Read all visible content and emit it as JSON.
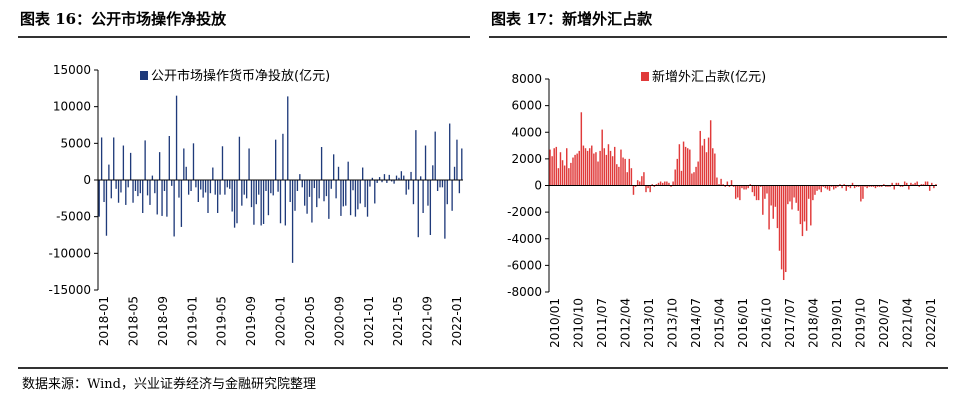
{
  "header": {
    "left_title": "图表 16：公开市场操作净投放",
    "right_title": "图表 17：新增外汇占款"
  },
  "footer": {
    "source": "数据来源：Wind，兴业证券经济与金融研究院整理"
  },
  "chart_data": [
    {
      "type": "bar",
      "legend": "公开市场操作货币净投放(亿元)",
      "color": "#1f3a7a",
      "ylim": [
        -15000,
        15000
      ],
      "yticks": [
        -15000,
        -10000,
        -5000,
        0,
        5000,
        10000,
        15000
      ],
      "xtick_labels": [
        "2018-01",
        "2018-05",
        "2018-09",
        "2019-01",
        "2019-05",
        "2019-09",
        "2020-01",
        "2020-05",
        "2020-09",
        "2021-01",
        "2021-05",
        "2021-09",
        "2022-01"
      ],
      "values": [
        -5000,
        5800,
        -3000,
        -7600,
        2100,
        -2500,
        5800,
        -1200,
        -3100,
        -1700,
        4700,
        -3400,
        -1000,
        3700,
        -3100,
        -1500,
        -2200,
        -1800,
        -4500,
        5400,
        -2100,
        -3400,
        600,
        -1800,
        -4700,
        3800,
        -4900,
        -1500,
        -5000,
        6000,
        -800,
        -7700,
        11500,
        -2400,
        -6400,
        4300,
        1800,
        -2000,
        -1500,
        5000,
        -1000,
        -3000,
        -1300,
        -2400,
        -1700,
        -4500,
        -1800,
        1700,
        -2000,
        -4500,
        -2000,
        4600,
        -2000,
        -1000,
        -1200,
        -4300,
        -6500,
        -5900,
        5900,
        -3500,
        -2000,
        -2500,
        4300,
        -3700,
        -6100,
        -3300,
        -2000,
        -6200,
        -6000,
        -1500,
        -4800,
        -1800,
        -2100,
        5500,
        -1600,
        -5900,
        6300,
        -6200,
        11400,
        -3000,
        -11300,
        -4200,
        -1500,
        800,
        -1000,
        -3500,
        -4600,
        -2300,
        -5800,
        -1100,
        -3700,
        -2500,
        4500,
        -2900,
        -2200,
        -5300,
        -1200,
        3500,
        -2500,
        1800,
        -4900,
        -3600,
        -3500,
        2500,
        -4800,
        -1400,
        -5000,
        -4000,
        -3200,
        1700,
        -3700,
        -5000,
        -900,
        300,
        -3200,
        -400,
        400,
        -300,
        800,
        -400,
        700,
        -200,
        -500,
        600,
        300,
        1200,
        600,
        -2000,
        -1300,
        1100,
        -3300,
        6800,
        -7800,
        500,
        -4500,
        4700,
        -3500,
        -7500,
        2000,
        6600,
        -1500,
        -1000,
        -1000,
        -8000,
        -3300,
        7700,
        -4200,
        1800,
        5500,
        -1800,
        4300
      ]
    },
    {
      "type": "bar",
      "legend": "新增外汇占款(亿元)",
      "color": "#e03a3a",
      "ylim": [
        -8000,
        8000
      ],
      "yticks": [
        -8000,
        -6000,
        -4000,
        -2000,
        0,
        2000,
        4000,
        6000,
        8000
      ],
      "xtick_labels": [
        "2010/01",
        "2010/10",
        "2011/07",
        "2012/04",
        "2013/01",
        "2013/10",
        "2014/07",
        "2015/04",
        "2016/01",
        "2016/10",
        "2017/07",
        "2018/04",
        "2019/01",
        "2019/10",
        "2020/07",
        "2021/04",
        "2022/01"
      ],
      "values": [
        2700,
        2200,
        2800,
        2900,
        1300,
        2500,
        1900,
        1500,
        2800,
        1300,
        1700,
        2100,
        2300,
        2400,
        2600,
        5500,
        3000,
        2800,
        2600,
        2800,
        3000,
        2400,
        2500,
        1800,
        2600,
        4200,
        2800,
        2300,
        3100,
        2600,
        2200,
        2900,
        1600,
        1400,
        2700,
        2100,
        2000,
        1000,
        2000,
        1300,
        -700,
        -100,
        400,
        300,
        700,
        1000,
        -500,
        -200,
        -500,
        100,
        -100,
        100,
        200,
        300,
        200,
        300,
        300,
        200,
        -100,
        300,
        1200,
        2000,
        3100,
        1100,
        3300,
        2900,
        2800,
        2700,
        900,
        1000,
        1400,
        1800,
        4100,
        3000,
        3500,
        2500,
        3600,
        4900,
        2800,
        2400,
        600,
        100,
        500,
        100,
        -100,
        300,
        -100,
        400,
        -100,
        -1000,
        -900,
        -1100,
        -200,
        -300,
        -300,
        -200,
        100,
        -500,
        -800,
        -1100,
        -1100,
        -100,
        -2200,
        -1000,
        -600,
        -3300,
        -1500,
        -2500,
        -1600,
        -3200,
        -4900,
        -6300,
        -7100,
        -6500,
        -1400,
        -1200,
        -1800,
        -900,
        -1300,
        -1900,
        -2900,
        -3800,
        -2700,
        -3400,
        -1000,
        -3000,
        -1100,
        -700,
        -400,
        -300,
        -500,
        -100,
        -200,
        -300,
        -400,
        -100,
        -300,
        -200,
        -100,
        100,
        -200,
        100,
        -400,
        -100,
        -200,
        200,
        -200,
        -100,
        -100,
        -1200,
        -1000,
        -100,
        -200,
        -100,
        -100,
        -100,
        -200,
        -100,
        -100,
        -100,
        100,
        -100,
        -100,
        -100,
        200,
        -300,
        200,
        200,
        -100,
        -100,
        300,
        200,
        -300,
        200,
        100,
        200,
        300,
        -100,
        100,
        100,
        300,
        300,
        -400,
        200,
        -200,
        100
      ]
    }
  ]
}
